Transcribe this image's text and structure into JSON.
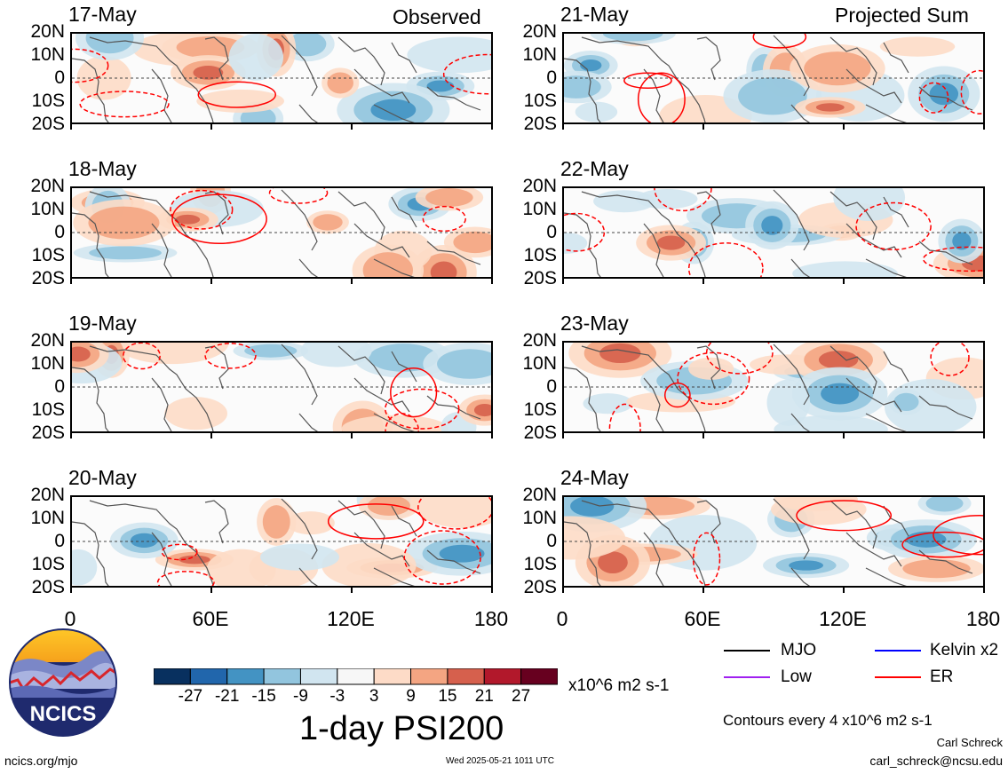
{
  "header": {
    "left_tag": "Observed",
    "right_tag": "Projected Sum"
  },
  "lat_labels": [
    "20N",
    "10N",
    "0",
    "10S",
    "20S"
  ],
  "lon_labels": [
    "0",
    "60E",
    "120E",
    "180"
  ],
  "observed_panels": [
    {
      "date": "17-May"
    },
    {
      "date": "18-May"
    },
    {
      "date": "19-May"
    },
    {
      "date": "20-May"
    }
  ],
  "projected_panels": [
    {
      "date": "21-May"
    },
    {
      "date": "22-May"
    },
    {
      "date": "23-May"
    },
    {
      "date": "24-May"
    }
  ],
  "colorbar": {
    "colors": [
      "#08305f",
      "#2166ac",
      "#4393c3",
      "#92c5de",
      "#d1e5f0",
      "#f7f7f7",
      "#fddbc7",
      "#f4a582",
      "#d6604d",
      "#b2182b",
      "#67001f"
    ],
    "ticks": [
      "-27",
      "-21",
      "-15",
      "-9",
      "-3",
      "3",
      "9",
      "15",
      "21",
      "27"
    ],
    "units": "x10^6 m2 s-1",
    "title": "1-day PSI200"
  },
  "legend": {
    "items": [
      {
        "label": "MJO",
        "color": "#000000"
      },
      {
        "label": "Kelvin x2",
        "color": "#0000ff"
      },
      {
        "label": "Low",
        "color": "#a020f0"
      },
      {
        "label": "ER",
        "color": "#ff0000"
      }
    ],
    "contours_note": "Contours every 4 x10^6 m2 s-1"
  },
  "credits": {
    "logo_text": "NCICS",
    "site": "ncics.org/mjo",
    "timestamp": "Wed 2025-05-21 1011 UTC",
    "author": "Carl Schreck",
    "email": "carl_schreck@ncsu.edu"
  }
}
